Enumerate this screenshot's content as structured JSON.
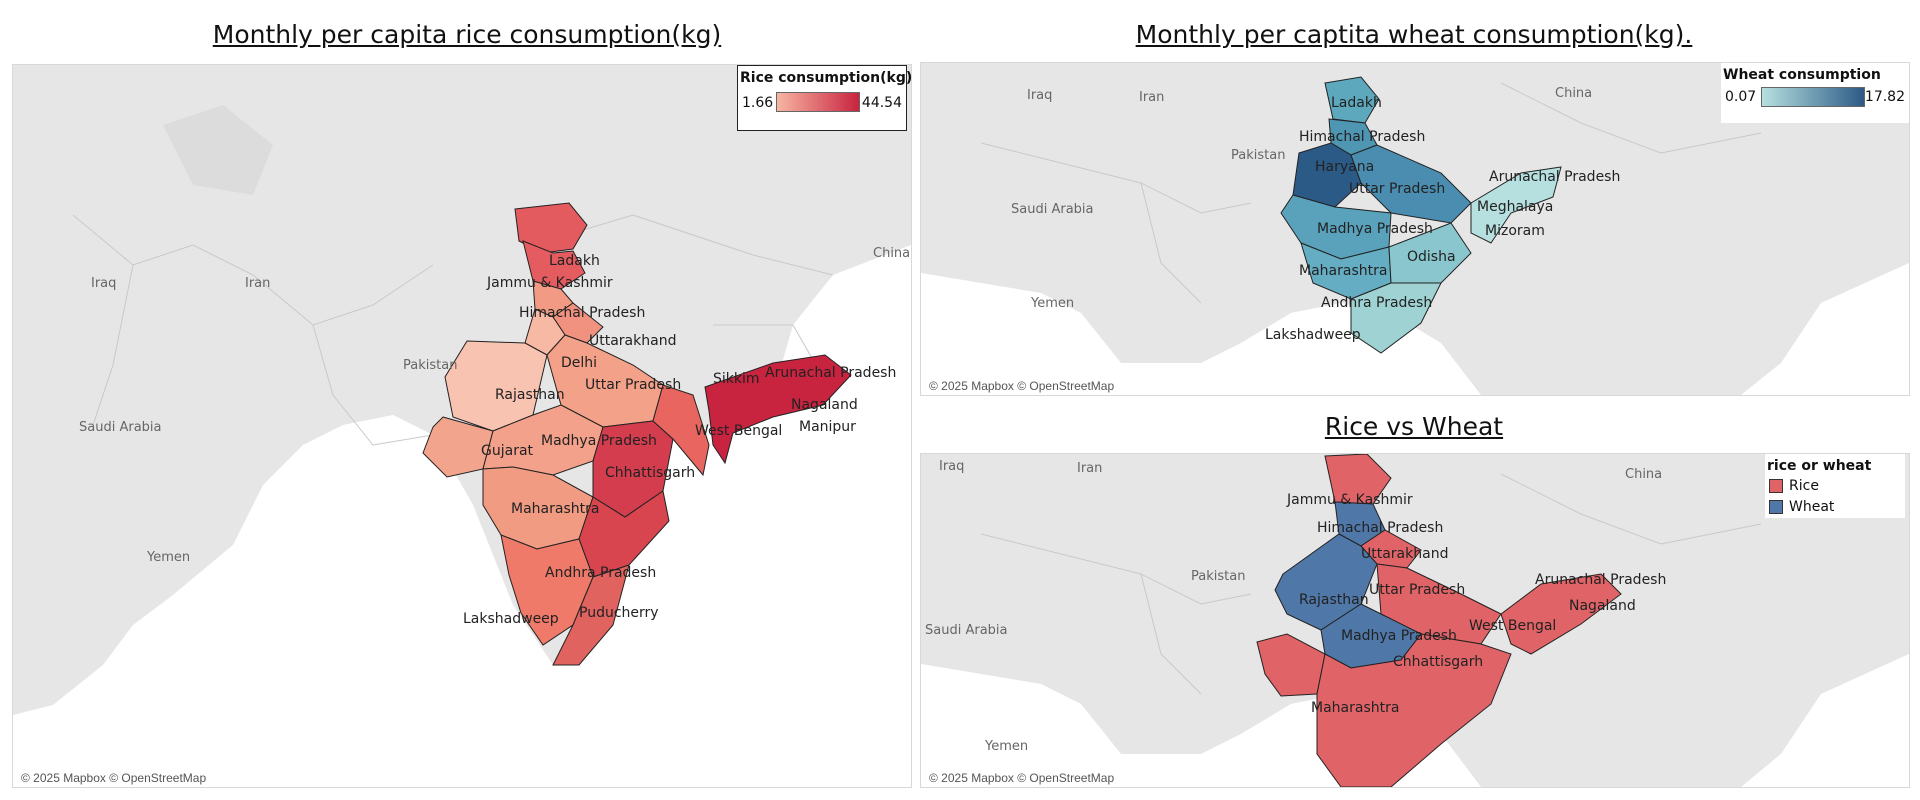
{
  "titles": {
    "rice": "Monthly per capita rice consumption(kg)",
    "wheat": "Monthly per captita wheat consumption(kg).",
    "rice_vs_wheat": "Rice vs Wheat"
  },
  "credits": "© 2025 Mapbox © OpenStreetMap",
  "legends": {
    "rice": {
      "title": "Rice consumption(kg)",
      "min": "1.66",
      "max": "44.54",
      "color_low": "#f7b5a3",
      "color_high": "#c8233f"
    },
    "wheat": {
      "title": "Wheat consumption",
      "min": "0.07",
      "max": "17.82",
      "color_low": "#b6e0df",
      "color_high": "#2c5a86"
    },
    "rice_vs_wheat": {
      "title": "rice or wheat",
      "items": [
        {
          "label": "Rice",
          "color": "#e06367"
        },
        {
          "label": "Wheat",
          "color": "#4f77a8"
        }
      ]
    }
  },
  "geo_labels": {
    "rice": [
      "Iraq",
      "Iran",
      "Pakistan",
      "Saudi Arabia",
      "Yemen",
      "China"
    ],
    "wheat": [
      "Iraq",
      "Iran",
      "Pakistan",
      "Saudi Arabia",
      "Yemen",
      "China"
    ],
    "rice_vs_wheat": [
      "Iraq",
      "Iran",
      "Pakistan",
      "Saudi Arabia",
      "Yemen",
      "China"
    ]
  },
  "state_labels": {
    "rice": [
      "Ladakh",
      "Jammu & Kashmir",
      "Himachal Pradesh",
      "Uttarakhand",
      "Delhi",
      "Rajasthan",
      "Uttar Pradesh",
      "Sikkim",
      "Arunachal Pradesh",
      "Nagaland",
      "Manipur",
      "West Bengal",
      "Gujarat",
      "Madhya Pradesh",
      "Chhattisgarh",
      "Maharashtra",
      "Andhra Pradesh",
      "Puducherry",
      "Lakshadweep"
    ],
    "wheat": [
      "Ladakh",
      "Himachal Pradesh",
      "Haryana",
      "Uttar Pradesh",
      "Arunachal Pradesh",
      "Meghalaya",
      "Madhya Pradesh",
      "Mizoram",
      "Odisha",
      "Maharashtra",
      "Andhra Pradesh",
      "Lakshadweep"
    ],
    "rice_vs_wheat": [
      "Jammu & Kashmir",
      "Himachal Pradesh",
      "Uttarakhand",
      "Rajasthan",
      "Uttar Pradesh",
      "Arunachal Pradesh",
      "Nagaland",
      "West Bengal",
      "Madhya Pradesh",
      "Chhattisgarh",
      "Maharashtra"
    ]
  },
  "chart_data": [
    {
      "type": "choropleth",
      "title": "Monthly per capita rice consumption(kg)",
      "scale": {
        "label": "Rice consumption(kg)",
        "min": 1.66,
        "max": 44.54
      },
      "regions": [
        {
          "name": "Ladakh",
          "value": 20
        },
        {
          "name": "Jammu & Kashmir",
          "value": 22
        },
        {
          "name": "Himachal Pradesh",
          "value": 10
        },
        {
          "name": "Uttarakhand",
          "value": 12
        },
        {
          "name": "Delhi",
          "value": 6
        },
        {
          "name": "Rajasthan",
          "value": 2
        },
        {
          "name": "Uttar Pradesh",
          "value": 14
        },
        {
          "name": "Gujarat",
          "value": 9
        },
        {
          "name": "Madhya Pradesh",
          "value": 11
        },
        {
          "name": "Chhattisgarh",
          "value": 34
        },
        {
          "name": "Maharashtra",
          "value": 13
        },
        {
          "name": "Andhra Pradesh",
          "value": 32
        },
        {
          "name": "Puducherry",
          "value": 30
        },
        {
          "name": "West Bengal",
          "value": 33
        },
        {
          "name": "Sikkim",
          "value": 28
        },
        {
          "name": "Arunachal Pradesh",
          "value": 40
        },
        {
          "name": "Nagaland",
          "value": 42
        },
        {
          "name": "Manipur",
          "value": 44
        },
        {
          "name": "Lakshadweep",
          "value": 40
        }
      ]
    },
    {
      "type": "choropleth",
      "title": "Monthly per captita wheat consumption(kg).",
      "scale": {
        "label": "Wheat consumption",
        "min": 0.07,
        "max": 17.82
      },
      "regions": [
        {
          "name": "Ladakh",
          "value": 8
        },
        {
          "name": "Himachal Pradesh",
          "value": 10
        },
        {
          "name": "Haryana",
          "value": 16
        },
        {
          "name": "Uttar Pradesh",
          "value": 10
        },
        {
          "name": "Madhya Pradesh",
          "value": 9
        },
        {
          "name": "Maharashtra",
          "value": 6
        },
        {
          "name": "Odisha",
          "value": 2
        },
        {
          "name": "Andhra Pradesh",
          "value": 1
        },
        {
          "name": "Arunachal Pradesh",
          "value": 2
        },
        {
          "name": "Meghalaya",
          "value": 1
        },
        {
          "name": "Mizoram",
          "value": 1
        },
        {
          "name": "Lakshadweep",
          "value": 1
        }
      ]
    },
    {
      "type": "categorical-map",
      "title": "Rice vs Wheat",
      "legend_title": "rice or wheat",
      "categories": [
        "Rice",
        "Wheat"
      ],
      "regions": [
        {
          "name": "Jammu & Kashmir",
          "category": "Rice"
        },
        {
          "name": "Himachal Pradesh",
          "category": "Wheat"
        },
        {
          "name": "Uttarakhand",
          "category": "Rice"
        },
        {
          "name": "Rajasthan",
          "category": "Wheat"
        },
        {
          "name": "Uttar Pradesh",
          "category": "Rice"
        },
        {
          "name": "Madhya Pradesh",
          "category": "Wheat"
        },
        {
          "name": "Arunachal Pradesh",
          "category": "Rice"
        },
        {
          "name": "Nagaland",
          "category": "Rice"
        },
        {
          "name": "West Bengal",
          "category": "Rice"
        },
        {
          "name": "Chhattisgarh",
          "category": "Rice"
        },
        {
          "name": "Maharashtra",
          "category": "Rice"
        }
      ]
    }
  ]
}
